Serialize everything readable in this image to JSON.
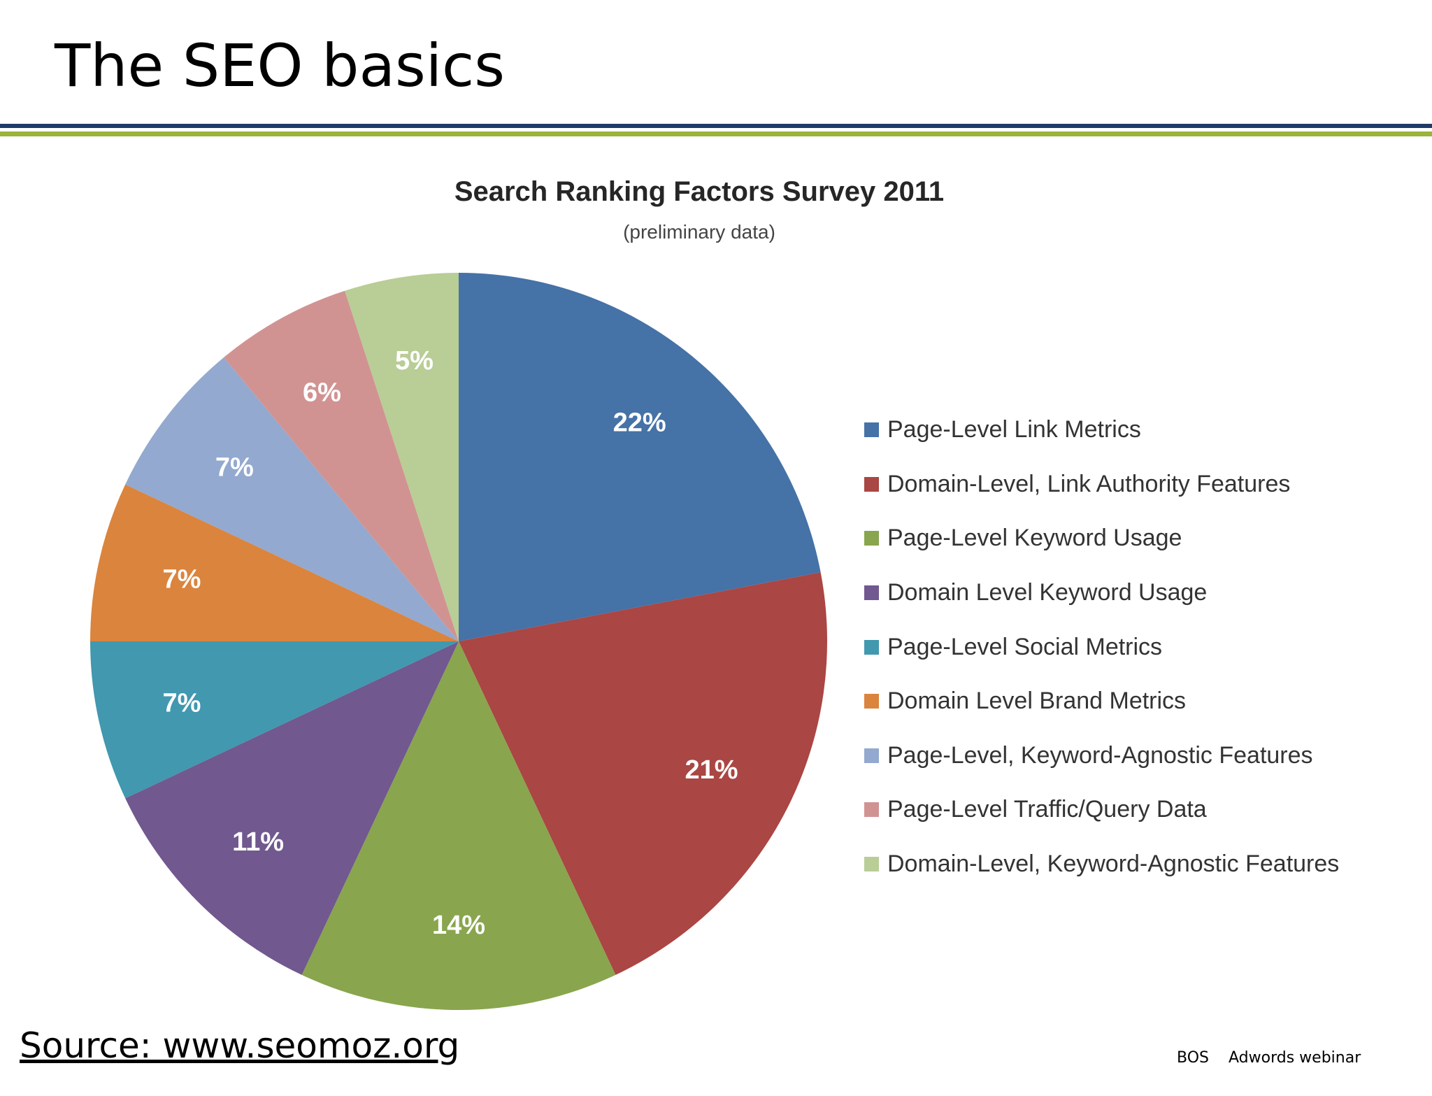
{
  "slide": {
    "title": "The SEO basics",
    "source": "Source: www.seomoz.org",
    "footer_left": "BOS",
    "footer_right": "Adwords webinar",
    "rule_colors": [
      "#1f3a68",
      "#9bb53c"
    ]
  },
  "chart_data": {
    "type": "pie",
    "title": "Search Ranking Factors Survey 2011",
    "subtitle": "(preliminary data)",
    "legend_position": "right",
    "categories": [
      "Page-Level Link Metrics",
      "Domain-Level, Link Authority Features",
      "Page-Level Keyword Usage",
      "Domain Level Keyword Usage",
      "Page-Level Social Metrics",
      "Domain Level Brand Metrics",
      "Page-Level, Keyword-Agnostic Features",
      "Page-Level Traffic/Query Data",
      "Domain-Level, Keyword-Agnostic Features"
    ],
    "values": [
      22,
      21,
      14,
      11,
      7,
      7,
      7,
      6,
      5
    ],
    "labels": [
      "22%",
      "21%",
      "14%",
      "11%",
      "7%",
      "7%",
      "7%",
      "6%",
      "5%"
    ],
    "colors": [
      "#4572a7",
      "#aa4643",
      "#89a54e",
      "#71588f",
      "#4198af",
      "#db843d",
      "#93a9cf",
      "#d19392",
      "#b9cd96"
    ]
  }
}
